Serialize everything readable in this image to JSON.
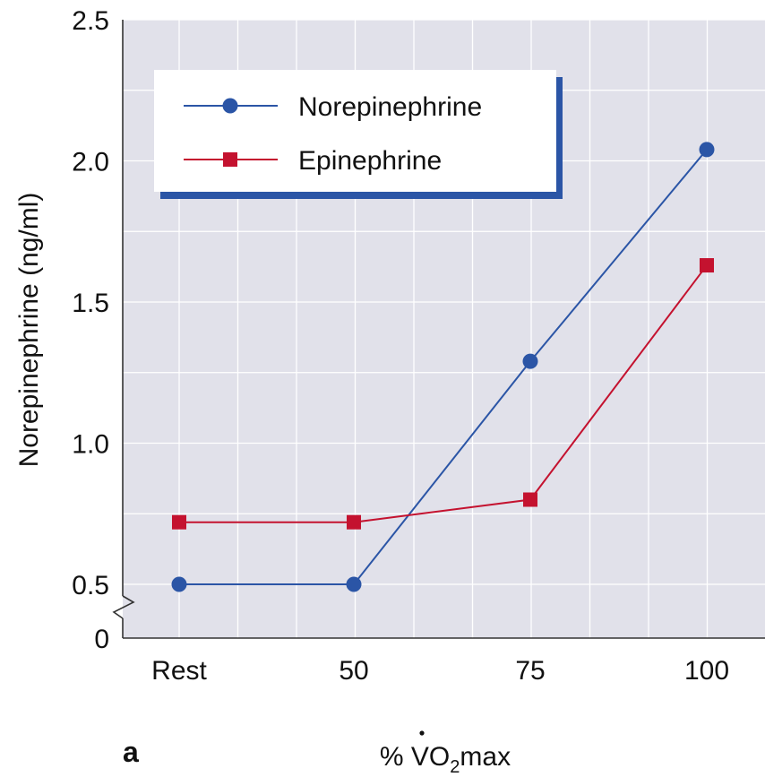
{
  "chart_data": {
    "type": "line",
    "panel_label": "a",
    "categories": [
      "Rest",
      "50",
      "75",
      "100"
    ],
    "series": [
      {
        "name": "Norepinephrine",
        "values": [
          0.5,
          0.5,
          1.29,
          2.04
        ],
        "color": "#2b55a6",
        "marker": "circle"
      },
      {
        "name": "Epinephrine",
        "values": [
          0.72,
          0.72,
          0.8,
          1.63
        ],
        "color": "#c4122f",
        "marker": "square"
      }
    ],
    "ylabel": "Norepinephrine (ng/ml)",
    "xlabel": {
      "prefix": "% ",
      "main": "VO",
      "sub": "2",
      "suffix": "max"
    },
    "yticks": [
      "0",
      "0.5",
      "1.0",
      "1.5",
      "2.0",
      "2.5"
    ],
    "ylim": [
      0,
      2.5
    ],
    "axis_break": true,
    "grid": true,
    "legend_position": "top-left",
    "colors": {
      "plot_background": "#e1e1ea",
      "grid": "#ffffff",
      "legend_shadow": "#2b55a6"
    }
  }
}
